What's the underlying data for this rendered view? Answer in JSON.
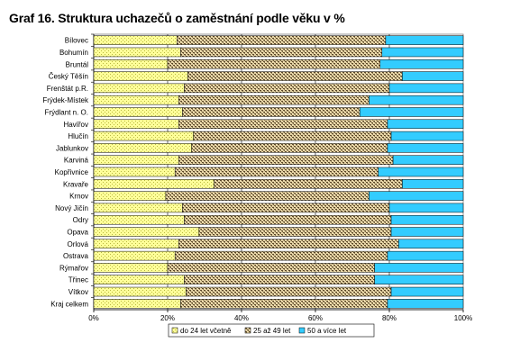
{
  "title": "Graf 16. Struktura uchazečů o zaměstnání podle věku v %",
  "colors": {
    "series1": "#FFFF99",
    "series2": "#8C7A4E",
    "series3": "#33CCFF"
  },
  "chart_data": {
    "type": "bar",
    "orientation": "horizontal",
    "stacked": "100%",
    "title": "Graf 16. Struktura uchazečů o zaměstnání podle věku v %",
    "categories": [
      "Bílovec",
      "Bohumín",
      "Bruntál",
      "Český Těšín",
      "Frenštát p.R.",
      "Frýdek-Místek",
      "Frýdlant n. O.",
      "Havířov",
      "Hlučín",
      "Jablunkov",
      "Karviná",
      "Kopřivnice",
      "Kravaře",
      "Krnov",
      "Nový Jičín",
      "Odry",
      "Opava",
      "Orlová",
      "Ostrava",
      "Rýmařov",
      "Třinec",
      "Vítkov",
      "Kraj celkem"
    ],
    "series": [
      {
        "name": "do 24 let včetně",
        "values": [
          22.5,
          23.5,
          20,
          25.5,
          24.5,
          23,
          24,
          23,
          27,
          26.5,
          23,
          22,
          32.5,
          19.5,
          24,
          24.5,
          28.5,
          23,
          22,
          20,
          24.5,
          25,
          23.5
        ]
      },
      {
        "name": "25 až 49 let",
        "values": [
          56.5,
          54.5,
          57.5,
          58,
          55.5,
          51.5,
          48,
          56.5,
          53.5,
          53,
          58,
          55,
          51,
          55,
          56,
          56,
          52,
          59.5,
          57.5,
          56,
          51.5,
          55.5,
          56
        ]
      },
      {
        "name": "50 a více let",
        "values": [
          21,
          22,
          22.5,
          16.5,
          20,
          25.5,
          28,
          20.5,
          19.5,
          20.5,
          19,
          23,
          16.5,
          25.5,
          20,
          19.5,
          19.5,
          17.5,
          20.5,
          24,
          24,
          19.5,
          20.5
        ]
      }
    ],
    "xlim": [
      0,
      100
    ],
    "xticks": [
      "0%",
      "20%",
      "40%",
      "60%",
      "80%",
      "100%"
    ],
    "legend": {
      "position": "bottom",
      "entries": [
        "do 24 let včetně",
        "25 až 49 let",
        "50 a více let"
      ]
    },
    "grid": true
  }
}
